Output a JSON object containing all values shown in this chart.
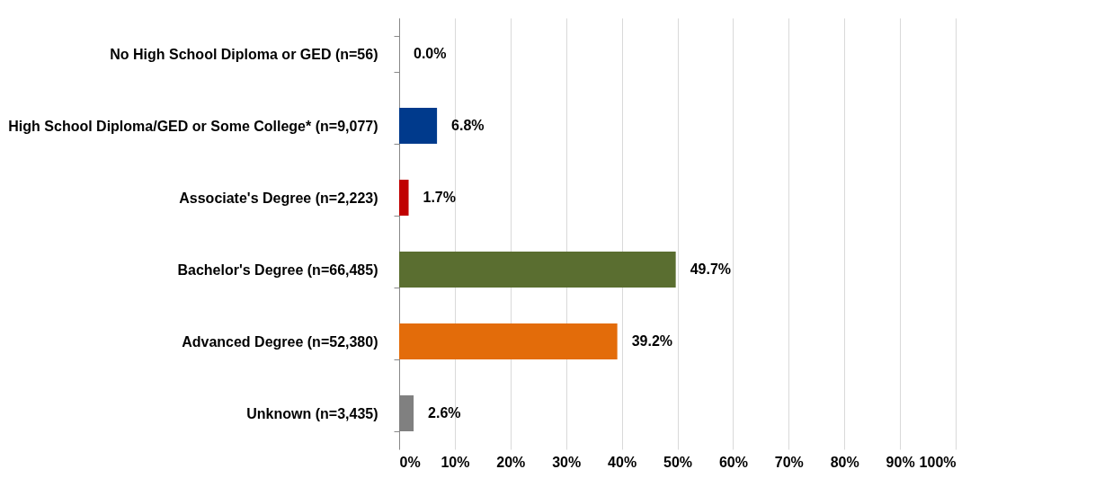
{
  "chart_data": {
    "type": "bar",
    "orientation": "horizontal",
    "categories": [
      "No High School Diploma or GED (n=56)",
      "High School Diploma/GED or Some College* (n=9,077)",
      "Associate's Degree (n=2,223)",
      "Bachelor's Degree (n=66,485)",
      "Advanced Degree (n=52,380)",
      "Unknown (n=3,435)"
    ],
    "values": [
      0.0,
      6.8,
      1.7,
      49.7,
      39.2,
      2.6
    ],
    "colors": [
      "#1f4e9c",
      "#003a8c",
      "#c00000",
      "#5a6e30",
      "#e36c0a",
      "#808080"
    ],
    "value_labels": [
      "0.0%",
      "6.8%",
      "1.7%",
      "49.7%",
      "39.2%",
      "2.6%"
    ],
    "xlim": [
      0,
      100
    ],
    "xticks": [
      {
        "value": 0,
        "label": "0%"
      },
      {
        "value": 10,
        "label": "10%"
      },
      {
        "value": 20,
        "label": "20%"
      },
      {
        "value": 30,
        "label": "30%"
      },
      {
        "value": 40,
        "label": "40%"
      },
      {
        "value": 50,
        "label": "50%"
      },
      {
        "value": 60,
        "label": "60%"
      },
      {
        "value": 70,
        "label": "70%"
      },
      {
        "value": 80,
        "label": "80%"
      },
      {
        "value": 90,
        "label": "90%"
      },
      {
        "value": 100,
        "label": "100%"
      }
    ],
    "grid": "x"
  }
}
